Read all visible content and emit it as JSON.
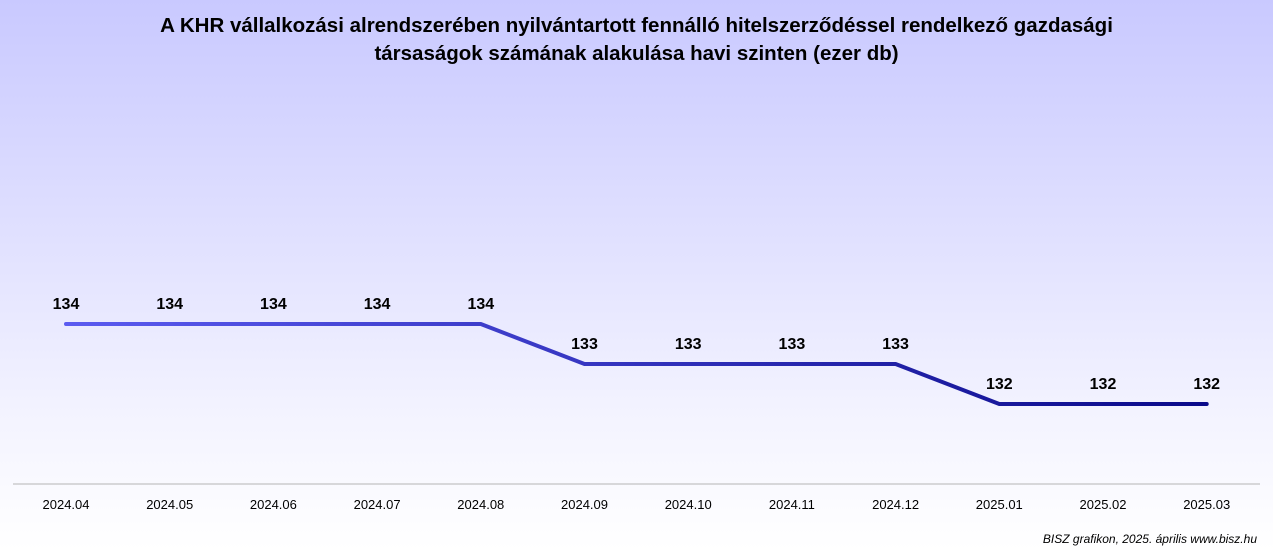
{
  "chart_data": {
    "type": "line",
    "title_lines": [
      "A KHR vállalkozási alrendszerében nyilvántartott fennálló hitelszerződéssel rendelkező gazdasági",
      "társaságok számának alakulása havi szinten (ezer db)"
    ],
    "categories": [
      "2024.04",
      "2024.05",
      "2024.06",
      "2024.07",
      "2024.08",
      "2024.09",
      "2024.10",
      "2024.11",
      "2024.12",
      "2025.01",
      "2025.02",
      "2025.03"
    ],
    "series": [
      {
        "values": [
          134,
          134,
          134,
          134,
          134,
          133,
          133,
          133,
          133,
          132,
          132,
          132
        ]
      }
    ],
    "data_labels": [
      "134",
      "134",
      "134",
      "134",
      "134",
      "133",
      "133",
      "133",
      "133",
      "132",
      "132",
      "132"
    ],
    "line_colors": [
      "#5b5bf0",
      "#0a0a8a"
    ],
    "grid": false,
    "legend": "none"
  },
  "footer": "BISZ grafikon, 2025. április www.bisz.hu"
}
